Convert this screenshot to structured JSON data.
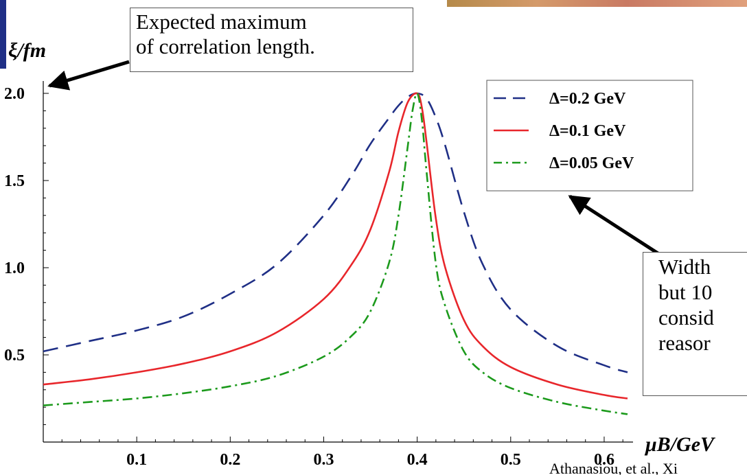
{
  "callouts": {
    "top": [
      "Expected maximum",
      "of correlation length."
    ],
    "right": [
      "Width",
      "but 10",
      "consid",
      "reasor"
    ]
  },
  "citation": "Athanasiou, et al., Xi",
  "chart_data": {
    "type": "line",
    "xlabel": "μB/GeV",
    "ylabel": "ξ/fm",
    "xlim": [
      0,
      0.625
    ],
    "ylim": [
      0,
      2.0
    ],
    "x_ticks": [
      0.1,
      0.2,
      0.3,
      0.4,
      0.5,
      0.6
    ],
    "y_ticks": [
      0.5,
      1.0,
      1.5,
      2.0
    ],
    "x_tick_labels": [
      "0.1",
      "0.2",
      "0.3",
      "0.4",
      "0.5",
      "0.6"
    ],
    "y_tick_labels": [
      "0.5",
      "1.0",
      "1.5",
      "2.0"
    ],
    "grid": false,
    "legend_position": "top-right",
    "series": [
      {
        "name": "Δ=0.2 GeV",
        "color": "#1f2f86",
        "style": "dashed",
        "x": [
          0,
          0.05,
          0.1,
          0.15,
          0.2,
          0.25,
          0.3,
          0.33,
          0.35,
          0.37,
          0.38,
          0.39,
          0.4,
          0.41,
          0.42,
          0.43,
          0.45,
          0.47,
          0.5,
          0.55,
          0.6,
          0.625
        ],
        "y": [
          0.52,
          0.58,
          0.64,
          0.72,
          0.85,
          1.02,
          1.3,
          1.53,
          1.71,
          1.86,
          1.93,
          1.98,
          2.0,
          1.97,
          1.86,
          1.7,
          1.32,
          1.02,
          0.76,
          0.55,
          0.44,
          0.4
        ]
      },
      {
        "name": "Δ=0.1 GeV",
        "color": "#e8262b",
        "style": "solid",
        "x": [
          0,
          0.05,
          0.1,
          0.15,
          0.2,
          0.25,
          0.3,
          0.33,
          0.35,
          0.37,
          0.38,
          0.39,
          0.4,
          0.405,
          0.41,
          0.42,
          0.43,
          0.45,
          0.47,
          0.5,
          0.55,
          0.6,
          0.625
        ],
        "y": [
          0.33,
          0.36,
          0.4,
          0.45,
          0.52,
          0.63,
          0.82,
          1.02,
          1.22,
          1.55,
          1.78,
          1.95,
          2.0,
          1.92,
          1.72,
          1.28,
          1.0,
          0.7,
          0.55,
          0.43,
          0.33,
          0.27,
          0.25
        ]
      },
      {
        "name": "Δ=0.05 GeV",
        "color": "#1c9a1c",
        "style": "dashdot",
        "x": [
          0,
          0.05,
          0.1,
          0.15,
          0.2,
          0.25,
          0.3,
          0.33,
          0.35,
          0.37,
          0.38,
          0.39,
          0.395,
          0.4,
          0.405,
          0.41,
          0.42,
          0.43,
          0.45,
          0.47,
          0.5,
          0.55,
          0.6,
          0.625
        ],
        "y": [
          0.21,
          0.23,
          0.25,
          0.28,
          0.32,
          0.38,
          0.49,
          0.61,
          0.75,
          1.03,
          1.3,
          1.7,
          1.9,
          2.0,
          1.85,
          1.55,
          1.02,
          0.78,
          0.52,
          0.4,
          0.31,
          0.23,
          0.18,
          0.16
        ]
      }
    ]
  },
  "arrows": [
    {
      "name": "arrow-to-max"
    },
    {
      "name": "arrow-to-legend"
    }
  ]
}
